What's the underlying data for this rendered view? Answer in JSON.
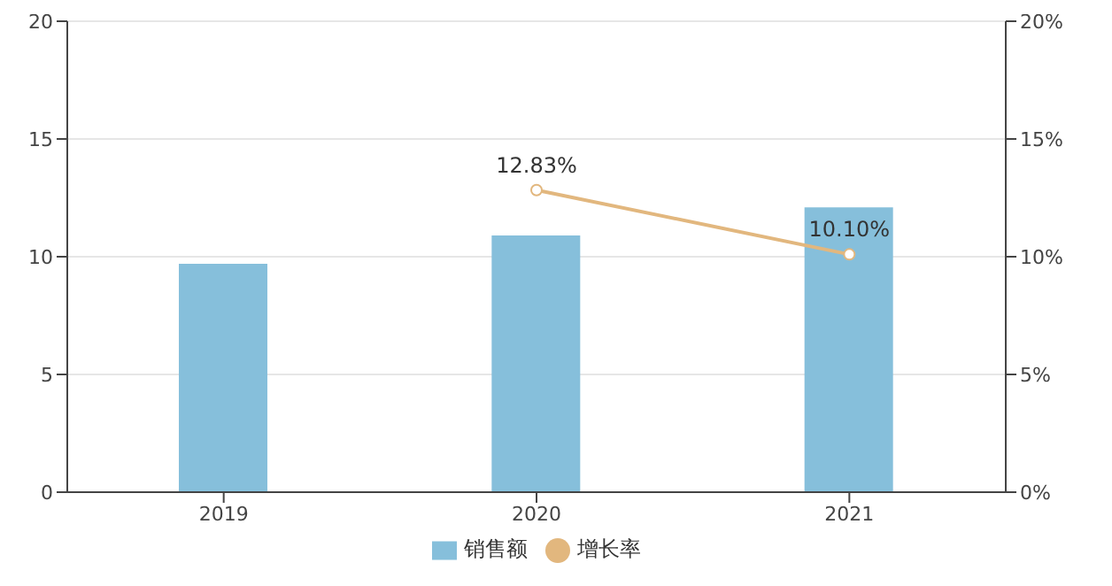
{
  "chart_data": {
    "type": "bar",
    "categories": [
      "2019",
      "2020",
      "2021"
    ],
    "series": [
      {
        "name": "销售额",
        "color": "#86bfdb",
        "values": [
          9.7,
          10.9,
          12.1
        ]
      },
      {
        "name": "增长率",
        "type": "line",
        "axis": "y2",
        "color": "#e2b77e",
        "values": [
          null,
          12.83,
          10.1
        ],
        "value_labels": [
          null,
          "12.83%",
          "10.10%"
        ]
      }
    ],
    "ylim": [
      0,
      20
    ],
    "yticks": [
      0,
      5,
      10,
      15,
      20
    ],
    "y2lim": [
      0,
      20
    ],
    "y2ticks": [
      {
        "value": 0,
        "label": "0%"
      },
      {
        "value": 5,
        "label": "5%"
      },
      {
        "value": 10,
        "label": "10%"
      },
      {
        "value": 15,
        "label": "15%"
      },
      {
        "value": 20,
        "label": "20%"
      }
    ],
    "grid": "y",
    "legend": "bottom",
    "marker": "circle"
  }
}
